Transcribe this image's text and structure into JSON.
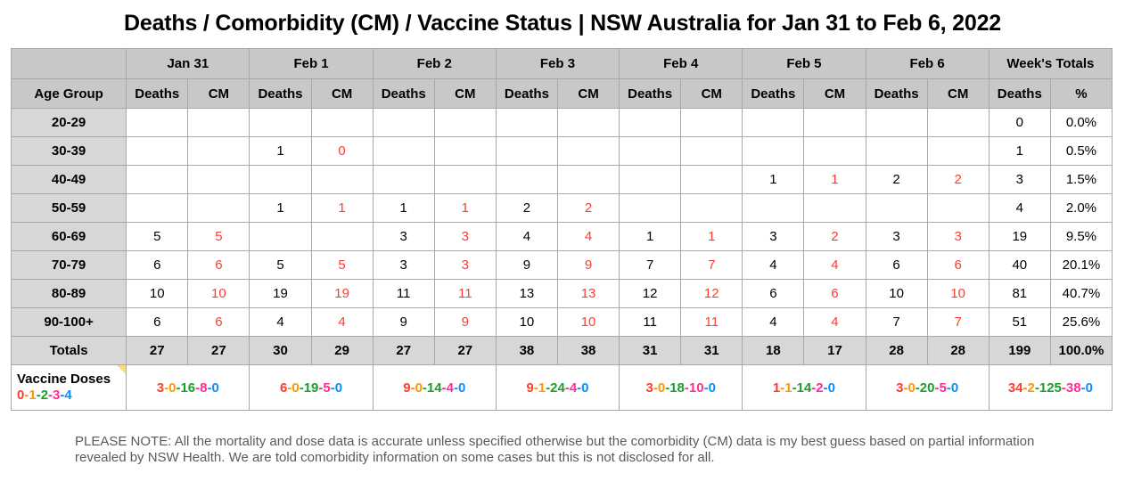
{
  "title": "Deaths / Comorbidity (CM) / Vaccine Status | NSW Australia for Jan 31 to Feb 6, 2022",
  "header": {
    "days": [
      "Jan 31",
      "Feb 1",
      "Feb 2",
      "Feb 3",
      "Feb 4",
      "Feb 5",
      "Feb 6"
    ],
    "week_totals": "Week's Totals",
    "age_group": "Age Group",
    "deaths": "Deaths",
    "cm": "CM",
    "pct": "%"
  },
  "rows": [
    {
      "age": "20-29",
      "cells": [
        "",
        "",
        "",
        "",
        "",
        "",
        "",
        "",
        "",
        "",
        "",
        "",
        "",
        ""
      ],
      "total": "0",
      "pct": "0.0%"
    },
    {
      "age": "30-39",
      "cells": [
        "",
        "",
        "1",
        "0",
        "",
        "",
        "",
        "",
        "",
        "",
        "",
        "",
        "",
        ""
      ],
      "total": "1",
      "pct": "0.5%"
    },
    {
      "age": "40-49",
      "cells": [
        "",
        "",
        "",
        "",
        "",
        "",
        "",
        "",
        "",
        "",
        "1",
        "1",
        "2",
        "2"
      ],
      "total": "3",
      "pct": "1.5%"
    },
    {
      "age": "50-59",
      "cells": [
        "",
        "",
        "1",
        "1",
        "1",
        "1",
        "2",
        "2",
        "",
        "",
        "",
        "",
        "",
        ""
      ],
      "total": "4",
      "pct": "2.0%"
    },
    {
      "age": "60-69",
      "cells": [
        "5",
        "5",
        "",
        "",
        "3",
        "3",
        "4",
        "4",
        "1",
        "1",
        "3",
        "2",
        "3",
        "3"
      ],
      "total": "19",
      "pct": "9.5%"
    },
    {
      "age": "70-79",
      "cells": [
        "6",
        "6",
        "5",
        "5",
        "3",
        "3",
        "9",
        "9",
        "7",
        "7",
        "4",
        "4",
        "6",
        "6"
      ],
      "total": "40",
      "pct": "20.1%"
    },
    {
      "age": "80-89",
      "cells": [
        "10",
        "10",
        "19",
        "19",
        "11",
        "11",
        "13",
        "13",
        "12",
        "12",
        "6",
        "6",
        "10",
        "10"
      ],
      "total": "81",
      "pct": "40.7%"
    },
    {
      "age": "90-100+",
      "cells": [
        "6",
        "6",
        "4",
        "4",
        "9",
        "9",
        "10",
        "10",
        "11",
        "11",
        "4",
        "4",
        "7",
        "7"
      ],
      "total": "51",
      "pct": "25.6%"
    }
  ],
  "totals": {
    "label": "Totals",
    "cells": [
      "27",
      "27",
      "30",
      "29",
      "27",
      "27",
      "38",
      "38",
      "31",
      "31",
      "18",
      "17",
      "28",
      "28"
    ],
    "total": "199",
    "pct": "100.0%"
  },
  "vaccine": {
    "label": "Vaccine Doses",
    "legend": [
      "0",
      "1",
      "2",
      "3",
      "4"
    ],
    "days": [
      [
        "3",
        "0",
        "16",
        "8",
        "0"
      ],
      [
        "6",
        "0",
        "19",
        "5",
        "0"
      ],
      [
        "9",
        "0",
        "14",
        "4",
        "0"
      ],
      [
        "9",
        "1",
        "24",
        "4",
        "0"
      ],
      [
        "3",
        "0",
        "18",
        "10",
        "0"
      ],
      [
        "1",
        "1",
        "14",
        "2",
        "0"
      ],
      [
        "3",
        "0",
        "20",
        "5",
        "0"
      ]
    ],
    "week": [
      "34",
      "2",
      "125",
      "38",
      "0"
    ]
  },
  "colors": {
    "dose0": "#ff3b30",
    "dose1": "#ff9500",
    "dose2": "#1a9f29",
    "dose3": "#ff2d92",
    "dose4": "#0a8cff",
    "cm_text": "#ff3b30",
    "header_bg": "#c8c8c8"
  },
  "note": "PLEASE NOTE: All the mortality and dose data is accurate unless specified otherwise but the comorbidity (CM) data is my best guess based on partial information revealed by NSW Health. We are told comorbidity information on some cases but this is not disclosed for all."
}
